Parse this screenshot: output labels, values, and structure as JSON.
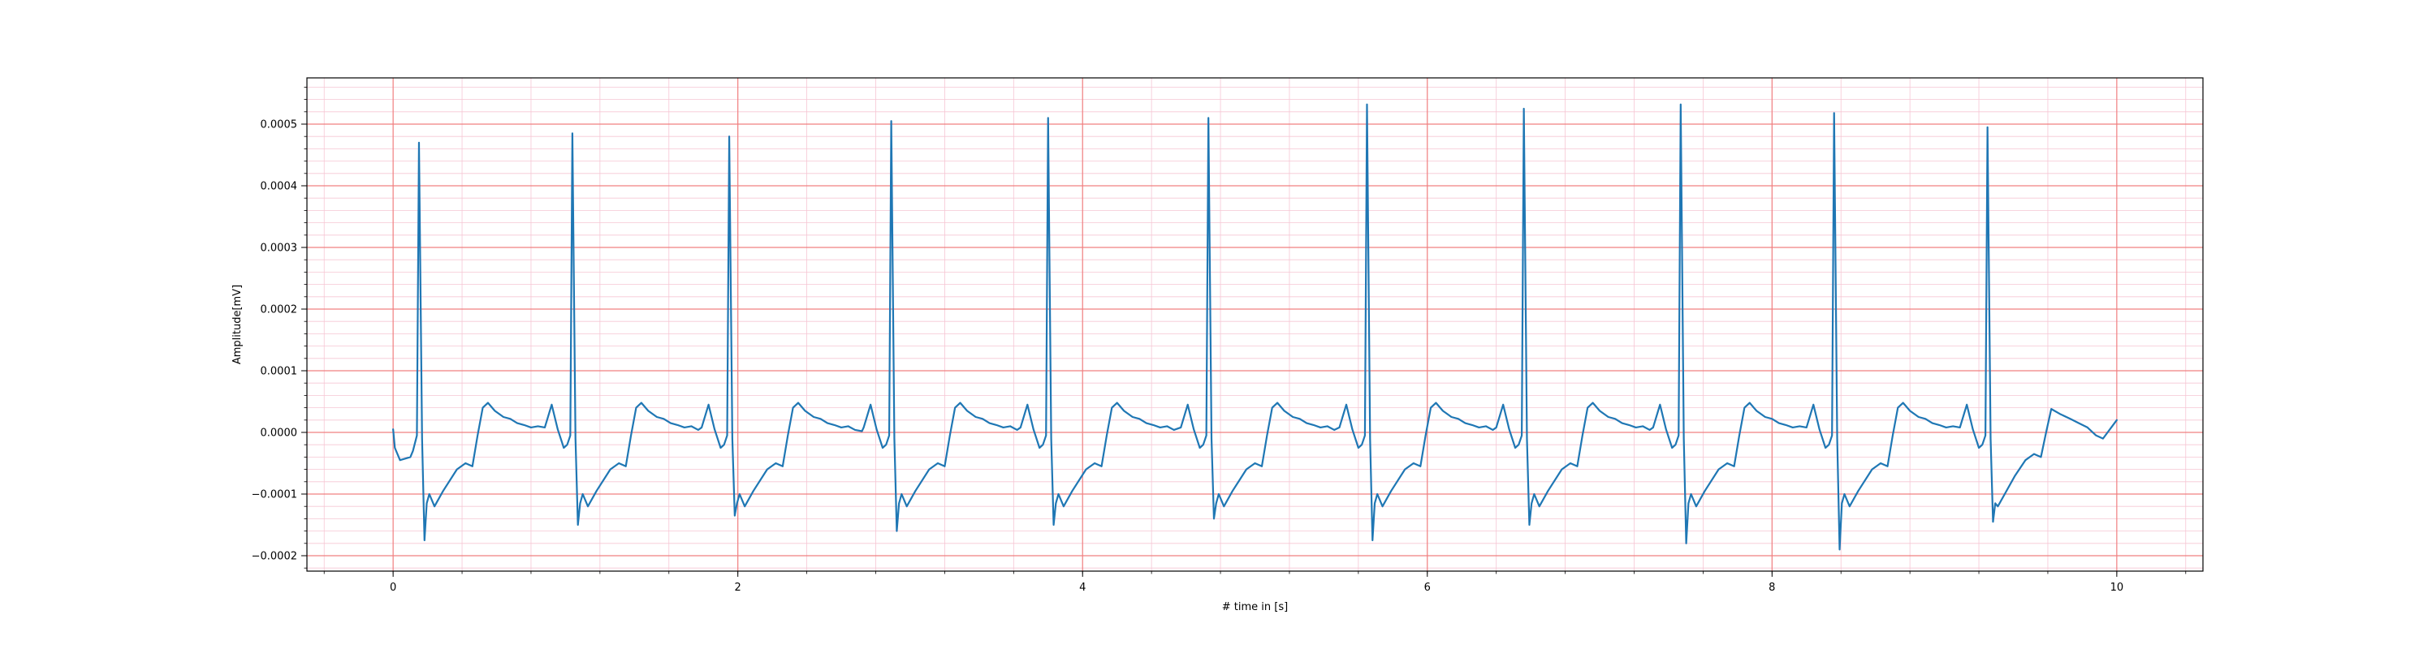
{
  "chart_data": {
    "type": "line",
    "xlabel": "# time in [s]",
    "ylabel": "Amplitude[mV]",
    "xlim": [
      -0.5,
      10.5
    ],
    "ylim": [
      -0.000225,
      0.000575
    ],
    "x_ticks": [
      0,
      2,
      4,
      6,
      8,
      10
    ],
    "x_tick_labels": [
      "0",
      "2",
      "4",
      "6",
      "8",
      "10"
    ],
    "y_ticks": [
      -0.0002,
      -0.0001,
      0.0,
      0.0001,
      0.0002,
      0.0003,
      0.0004,
      0.0005
    ],
    "y_tick_labels": [
      "−0.0002",
      "−0.0001",
      "0.0000",
      "0.0001",
      "0.0002",
      "0.0003",
      "0.0004",
      "0.0005"
    ],
    "grid": {
      "major": true,
      "minor": true,
      "major_color": "#f08080",
      "minor_color": "#f6c6d4"
    },
    "line_color": "#1f77b4",
    "beats": [
      {
        "r_time": 0.15,
        "r_peak": 0.00047,
        "s_trough": -0.000175
      },
      {
        "r_time": 1.04,
        "r_peak": 0.000485,
        "s_trough": -0.00015
      },
      {
        "r_time": 1.95,
        "r_peak": 0.00048,
        "s_trough": -0.000135
      },
      {
        "r_time": 2.89,
        "r_peak": 0.000505,
        "s_trough": -0.00016
      },
      {
        "r_time": 3.8,
        "r_peak": 0.00051,
        "s_trough": -0.00015
      },
      {
        "r_time": 4.73,
        "r_peak": 0.00051,
        "s_trough": -0.00014
      },
      {
        "r_time": 5.65,
        "r_peak": 0.000532,
        "s_trough": -0.000175
      },
      {
        "r_time": 6.56,
        "r_peak": 0.000525,
        "s_trough": -0.00015
      },
      {
        "r_time": 7.47,
        "r_peak": 0.000532,
        "s_trough": -0.00018
      },
      {
        "r_time": 8.36,
        "r_peak": 0.000518,
        "s_trough": -0.00019
      },
      {
        "r_time": 9.25,
        "r_peak": 0.000495,
        "s_trough": -0.000145
      }
    ],
    "start": {
      "x": 0.0,
      "y": 5e-06
    },
    "end": {
      "x": 10.0,
      "y": 2e-05
    }
  }
}
